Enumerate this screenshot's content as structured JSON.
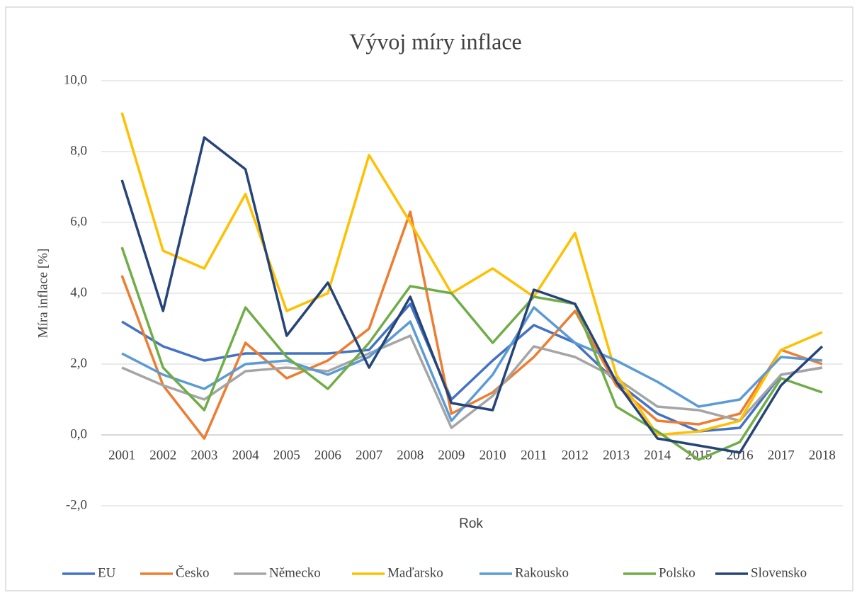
{
  "chart_data": {
    "type": "line",
    "title": "Vývoj míry inflace",
    "ylabel": "Míra inflace [%]",
    "xlabel": "Rok",
    "categories": [
      "2001",
      "2002",
      "2003",
      "2004",
      "2005",
      "2006",
      "2007",
      "2008",
      "2009",
      "2010",
      "2011",
      "2012",
      "2013",
      "2014",
      "2015",
      "2016",
      "2017",
      "2018"
    ],
    "series": [
      {
        "name": "EU",
        "color": "#4472c4",
        "values": [
          3.2,
          2.5,
          2.1,
          2.3,
          2.3,
          2.3,
          2.4,
          3.7,
          1.0,
          2.1,
          3.1,
          2.6,
          1.5,
          0.6,
          0.1,
          0.2,
          1.7,
          1.9
        ]
      },
      {
        "name": "Česko",
        "color": "#ed7d31",
        "values": [
          4.5,
          1.4,
          -0.1,
          2.6,
          1.6,
          2.1,
          3.0,
          6.3,
          0.6,
          1.2,
          2.2,
          3.5,
          1.4,
          0.4,
          0.3,
          0.6,
          2.4,
          2.0
        ]
      },
      {
        "name": "Německo",
        "color": "#a5a5a5",
        "values": [
          1.9,
          1.4,
          1.0,
          1.8,
          1.9,
          1.8,
          2.3,
          2.8,
          0.2,
          1.1,
          2.5,
          2.2,
          1.6,
          0.8,
          0.7,
          0.4,
          1.7,
          1.9
        ]
      },
      {
        "name": "Maďarsko",
        "color": "#ffc000",
        "values": [
          9.1,
          5.2,
          4.7,
          6.8,
          3.5,
          4.0,
          7.9,
          6.0,
          4.0,
          4.7,
          3.9,
          5.7,
          1.7,
          0.0,
          0.1,
          0.4,
          2.4,
          2.9
        ]
      },
      {
        "name": "Rakousko",
        "color": "#5b9bd5",
        "values": [
          2.3,
          1.7,
          1.3,
          2.0,
          2.1,
          1.7,
          2.2,
          3.2,
          0.4,
          1.7,
          3.6,
          2.6,
          2.1,
          1.5,
          0.8,
          1.0,
          2.2,
          2.1
        ]
      },
      {
        "name": "Polsko",
        "color": "#70ad47",
        "values": [
          5.3,
          1.9,
          0.7,
          3.6,
          2.2,
          1.3,
          2.6,
          4.2,
          4.0,
          2.6,
          3.9,
          3.7,
          0.8,
          0.1,
          -0.7,
          -0.2,
          1.6,
          1.2
        ]
      },
      {
        "name": "Slovensko",
        "color": "#264478",
        "values": [
          7.2,
          3.5,
          8.4,
          7.5,
          2.8,
          4.3,
          1.9,
          3.9,
          0.9,
          0.7,
          4.1,
          3.7,
          1.5,
          -0.1,
          -0.3,
          -0.5,
          1.4,
          2.5
        ]
      }
    ],
    "ylim": [
      -2,
      10
    ],
    "yticks": [
      {
        "value": -2,
        "label": "-2,0"
      },
      {
        "value": 0,
        "label": "0,0"
      },
      {
        "value": 2,
        "label": "2,0"
      },
      {
        "value": 4,
        "label": "4,0"
      },
      {
        "value": 6,
        "label": "6,0"
      },
      {
        "value": 8,
        "label": "8,0"
      },
      {
        "value": 10,
        "label": "10,0"
      }
    ],
    "grid": true,
    "legend": "bottom"
  }
}
